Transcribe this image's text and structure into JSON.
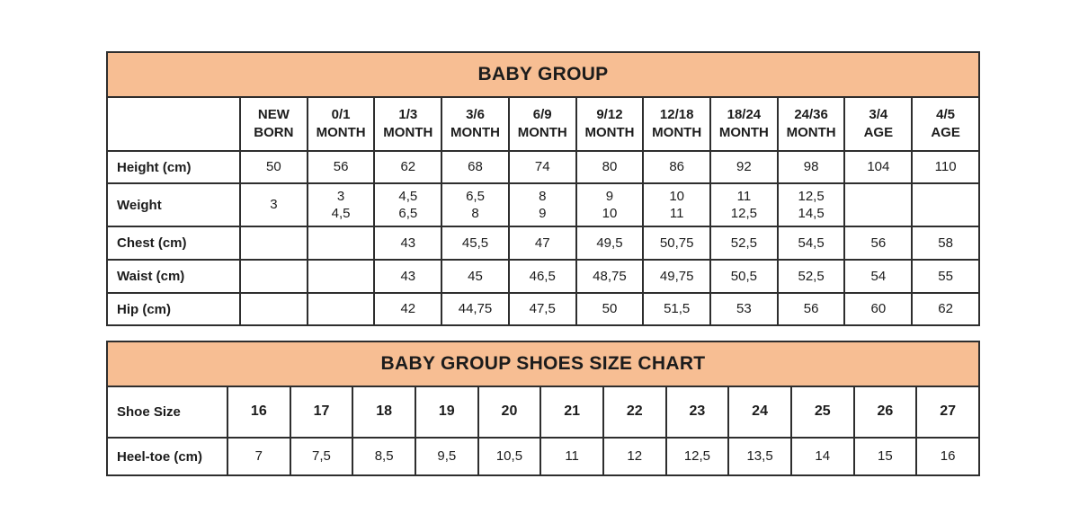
{
  "page": {
    "background": "#ffffff",
    "accent_color": "#f7be93",
    "border_color": "#2e2e2e",
    "text_color": "#1c1c1c"
  },
  "chart_data": [
    {
      "type": "table",
      "title": "BABY GROUP",
      "columns": [
        "",
        "NEW\nBORN",
        "0/1\nMONTH",
        "1/3\nMONTH",
        "3/6\nMONTH",
        "6/9\nMONTH",
        "9/12\nMONTH",
        "12/18\nMONTH",
        "18/24\nMONTH",
        "24/36\nMONTH",
        "3/4\nAGE",
        "4/5\nAGE"
      ],
      "rows": [
        {
          "label": "Height (cm)",
          "values": [
            "50",
            "56",
            "62",
            "68",
            "74",
            "80",
            "86",
            "92",
            "98",
            "104",
            "110"
          ]
        },
        {
          "label": "Weight",
          "values": [
            "3",
            "3\n4,5",
            "4,5\n6,5",
            "6,5\n8",
            "8\n9",
            "9\n10",
            "10\n11",
            "11\n12,5",
            "12,5\n14,5",
            "",
            ""
          ]
        },
        {
          "label": "Chest (cm)",
          "values": [
            "",
            "",
            "43",
            "45,5",
            "47",
            "49,5",
            "50,75",
            "52,5",
            "54,5",
            "56",
            "58"
          ]
        },
        {
          "label": "Waist (cm)",
          "values": [
            "",
            "",
            "43",
            "45",
            "46,5",
            "48,75",
            "49,75",
            "50,5",
            "52,5",
            "54",
            "55"
          ]
        },
        {
          "label": "Hip (cm)",
          "values": [
            "",
            "",
            "42",
            "44,75",
            "47,5",
            "50",
            "51,5",
            "53",
            "56",
            "60",
            "62"
          ]
        }
      ]
    },
    {
      "type": "table",
      "title": "BABY GROUP SHOES SIZE CHART",
      "rows": [
        {
          "label": "Shoe Size",
          "bold": true,
          "values": [
            "16",
            "17",
            "18",
            "19",
            "20",
            "21",
            "22",
            "23",
            "24",
            "25",
            "26",
            "27"
          ]
        },
        {
          "label": "Heel-toe (cm)",
          "values": [
            "7",
            "7,5",
            "8,5",
            "9,5",
            "10,5",
            "11",
            "12",
            "12,5",
            "13,5",
            "14",
            "15",
            "16"
          ]
        }
      ]
    }
  ]
}
